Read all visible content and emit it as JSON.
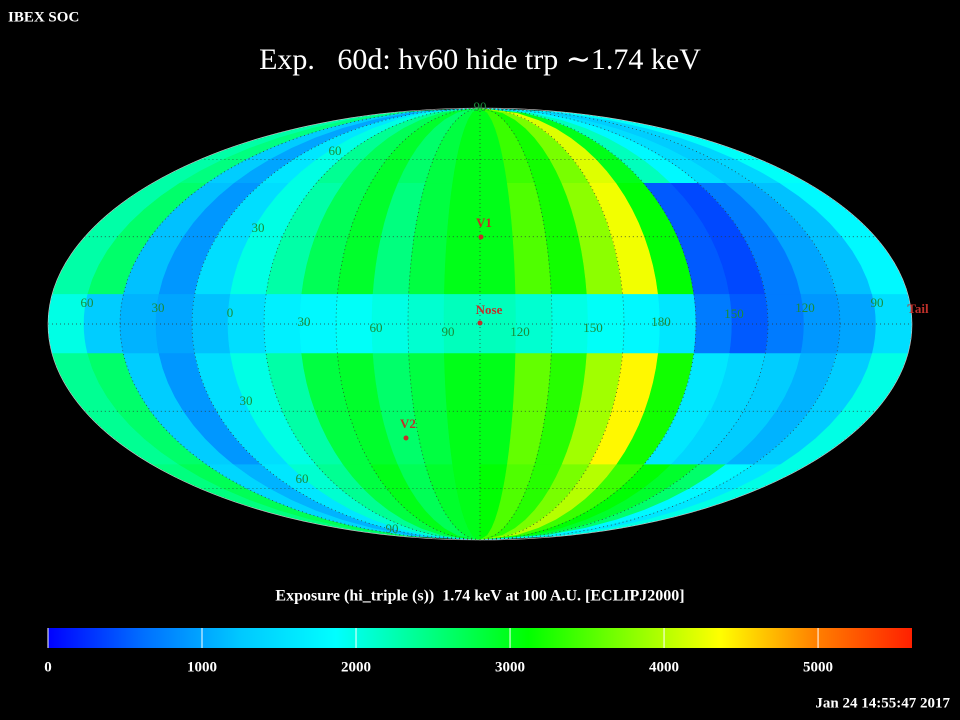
{
  "header": "IBEX SOC",
  "footer": "Jan 24 14:55:47 2017",
  "chart_data": {
    "type": "skymap",
    "title": "Exp.   60d: hv60 hide trp ∼1.74 keV",
    "colorbar_label": "Exposure (hi_triple (s))  1.74 keV at 100 A.U. [ECLIPJ2000]",
    "lon_bins": [
      -180,
      -165,
      -150,
      -135,
      -120,
      -105,
      -90,
      -75,
      -60,
      -45,
      -30,
      -15,
      0,
      15,
      30,
      45,
      60,
      75,
      90,
      105,
      120,
      135,
      150,
      165,
      180
    ],
    "lat_bins": [
      90,
      50,
      10,
      -10,
      -50,
      -90
    ],
    "values": [
      [
        2300,
        2500,
        1300,
        1000,
        1600,
        2000,
        2400,
        2700,
        2900,
        2600,
        2800,
        3000,
        3000,
        3400,
        3200,
        3700,
        4200,
        3000,
        2200,
        1800,
        1500,
        1300,
        1400,
        1900
      ],
      [
        2300,
        2600,
        1200,
        900,
        1500,
        2000,
        2300,
        2700,
        2900,
        2500,
        2800,
        3000,
        3000,
        3500,
        3200,
        3800,
        4300,
        3100,
        500,
        400,
        700,
        1000,
        1200,
        1800
      ],
      [
        2000,
        1300,
        1100,
        1000,
        1200,
        1500,
        1700,
        1800,
        1900,
        2000,
        2100,
        2200,
        2200,
        2100,
        2000,
        1900,
        1800,
        1600,
        700,
        500,
        700,
        900,
        1000,
        1500
      ],
      [
        2400,
        2600,
        1300,
        900,
        1500,
        2000,
        2300,
        2800,
        2900,
        2600,
        2800,
        3000,
        3000,
        3600,
        3300,
        3900,
        4400,
        3200,
        1600,
        1400,
        1300,
        1100,
        1300,
        2000
      ],
      [
        2500,
        2700,
        1400,
        1100,
        1600,
        2100,
        2400,
        2800,
        3000,
        2700,
        2900,
        3000,
        3100,
        3500,
        3300,
        3700,
        4000,
        3400,
        3100,
        2900,
        2600,
        1800,
        1600,
        2000
      ]
    ],
    "zlim": [
      0,
      5610
    ],
    "zticks": [
      0,
      1000,
      2000,
      3000,
      4000,
      5000
    ],
    "colormap": [
      "#0000ff",
      "#0070ff",
      "#00c8ff",
      "#00ffff",
      "#00ff80",
      "#00ff00",
      "#80ff00",
      "#ffff00",
      "#ff8000",
      "#ff2000"
    ],
    "lon_labels": [
      60,
      30,
      0,
      30,
      60,
      90,
      120,
      150,
      180,
      150,
      120,
      90
    ],
    "lat_labels": [
      90,
      60,
      30,
      30,
      60,
      90
    ],
    "annotations": [
      "V1",
      "Nose",
      "V2",
      "Tail"
    ]
  }
}
